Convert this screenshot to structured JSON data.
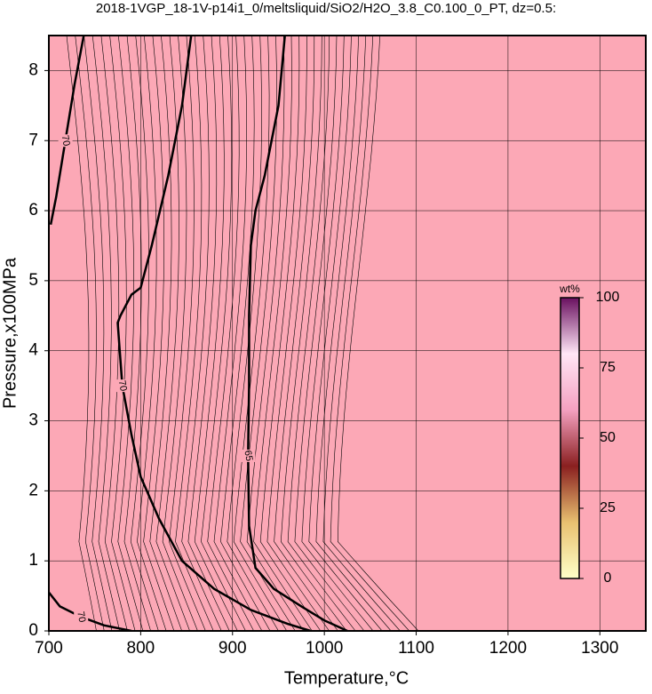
{
  "chart_data": {
    "type": "contour",
    "title": "2018-1VGP_18-1V-p14i1_0/meltsliquid/SiO2/H2O_3.8_C0.100_0_PT, dz=0.5:",
    "x_label": "Temperature,°C",
    "y_label": "Pressure,x100MPa",
    "xlim": [
      700,
      1350
    ],
    "ylim": [
      0,
      8.5
    ],
    "xticks": [
      700,
      800,
      900,
      1000,
      1100,
      1200,
      1300
    ],
    "yticks": [
      0,
      1,
      2,
      3,
      4,
      5,
      6,
      7,
      8
    ],
    "grid": true,
    "background_color": "#fca8b6",
    "contours": [
      {
        "level": 70,
        "x": [
          855,
          845,
          830,
          812,
          800,
          790,
          778,
          775,
          780,
          790,
          800,
          820,
          845,
          880,
          920,
          960,
          985
        ],
        "y": [
          8.5,
          7.5,
          6.5,
          5.5,
          4.9,
          4.8,
          4.5,
          4.4,
          3.5,
          2.8,
          2.2,
          1.6,
          1.0,
          0.6,
          0.3,
          0.1,
          0
        ]
      },
      {
        "level": 65,
        "x": [
          957,
          950,
          935,
          925,
          920,
          918,
          918,
          917,
          918,
          925,
          945,
          975,
          1000,
          1025
        ],
        "y": [
          8.5,
          7.5,
          6.5,
          6.0,
          5.5,
          4.5,
          3.5,
          2.5,
          1.5,
          0.9,
          0.6,
          0.35,
          0.15,
          0
        ]
      },
      {
        "level": 70,
        "x": [
          738,
          728,
          718,
          708,
          702
        ],
        "y": [
          8.5,
          7.8,
          7.0,
          6.2,
          5.8
        ]
      },
      {
        "level": 70,
        "x": [
          700,
          712,
          735,
          760,
          790
        ],
        "y": [
          0.55,
          0.35,
          0.2,
          0.08,
          0
        ]
      }
    ],
    "colorbar": {
      "label": "wt%",
      "lim": [
        0,
        100
      ],
      "ticks": [
        0,
        25,
        50,
        75,
        100
      ],
      "colors": [
        "#ffffc8",
        "#e8c070",
        "#8a2020",
        "#f4a0c0",
        "#ffe6f6",
        "#6a1060"
      ]
    }
  }
}
